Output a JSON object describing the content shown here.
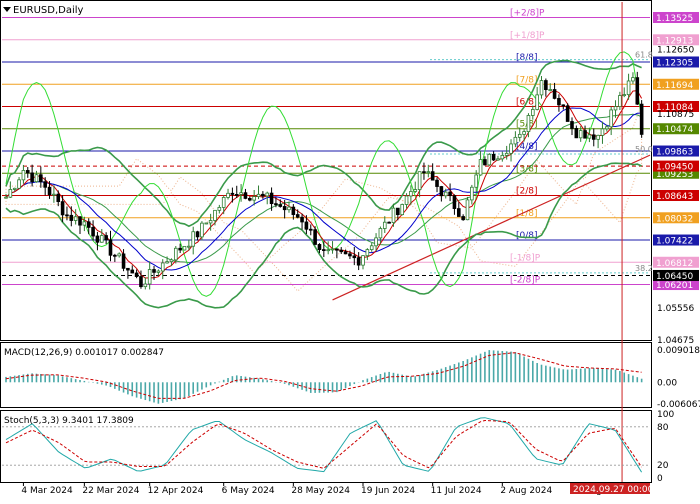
{
  "chart_title": "EURUSD,Daily",
  "symbol_icon": "triangle-down-icon",
  "colors": {
    "up_candle": "#2e7d32",
    "down_candle": "#000000",
    "ma_fast": "#cc0000",
    "ma_slow": "#0000cc",
    "bollinger": "#3a9a4a",
    "rsi_line": "#33dd33",
    "ichimoku_cloud": "#e8a070",
    "trendline": "#cc2222",
    "vline": "#cc2222",
    "murrey_plus2": "#cc44cc",
    "murrey_plus1": "#f0a0d0",
    "murrey_8_8": "#1a1aaa",
    "murrey_7_8": "#f0a020",
    "murrey_6_8": "#cc0000",
    "murrey_5_8": "#558800",
    "murrey_4_8": "#1a1aaa",
    "murrey_3_8": "#558800",
    "murrey_2_8": "#cc0000",
    "murrey_1_8": "#f0a020",
    "murrey_0_8": "#1a1aaa",
    "murrey_minus1": "#f0a0d0",
    "murrey_minus2": "#cc44cc",
    "fib_line": "#66cccc",
    "macd_bar": "#4aa8a8",
    "macd_signal": "#cc0000",
    "stoch_main": "#20a8a8",
    "stoch_signal": "#cc0000"
  },
  "murrey_levels": [
    {
      "label": "[+2/8]P",
      "price": 1.13525,
      "color_key": "murrey_plus2",
      "tag": "1.13525"
    },
    {
      "label": "[+1/8]P",
      "price": 1.12913,
      "color_key": "murrey_plus1",
      "tag": "1.12913"
    },
    {
      "label": "[8/8]",
      "price": 1.12305,
      "color_key": "murrey_8_8",
      "tag": "1.12305"
    },
    {
      "label": "[7/8]",
      "price": 1.11694,
      "color_key": "murrey_7_8",
      "tag": "1.11694"
    },
    {
      "label": "[6/8]",
      "price": 1.11084,
      "color_key": "murrey_6_8",
      "tag": "1.11084"
    },
    {
      "label": "[5/8]",
      "price": 1.10474,
      "color_key": "murrey_5_8",
      "tag": "1.10474"
    },
    {
      "label": "[4/8]",
      "price": 1.09863,
      "color_key": "murrey_4_8",
      "tag": "1.09863"
    },
    {
      "label": "[3/8]",
      "price": 1.09253,
      "color_key": "murrey_3_8",
      "tag": "1.09253"
    },
    {
      "label": "[2/8]",
      "price": 1.08643,
      "color_key": "murrey_2_8",
      "tag": "1.08643"
    },
    {
      "label": "[1/8]",
      "price": 1.08032,
      "color_key": "murrey_1_8",
      "tag": "1.08032"
    },
    {
      "label": "[0/8]",
      "price": 1.07422,
      "color_key": "murrey_0_8",
      "tag": "1.07422"
    },
    {
      "label": "[-1/8]P",
      "price": 1.06812,
      "color_key": "murrey_minus1",
      "tag": "1.06812"
    },
    {
      "label": "[-2/8]P",
      "price": 1.06201,
      "color_key": "murrey_minus2",
      "tag": "1.06201"
    }
  ],
  "extra_price_tags": [
    {
      "price": 1.0945,
      "tag": "1.09450",
      "color": "#cc0000",
      "dashed": true
    },
    {
      "price": 1.0645,
      "tag": "1.06450",
      "color": "#000000",
      "dashed": true
    }
  ],
  "fib_levels": [
    {
      "label": "61.8",
      "price": 1.1237
    },
    {
      "label": "50.0",
      "price": 1.0978
    },
    {
      "label": "38.2",
      "price": 1.0652
    }
  ],
  "price_axis_labels": [
    {
      "text": "1.12650",
      "price": 1.1265
    },
    {
      "text": "1.10875",
      "price": 1.10875
    },
    {
      "text": "1.05556",
      "price": 1.05556
    },
    {
      "text": "1.04675",
      "price": 1.04675
    }
  ],
  "macd": {
    "title": "MACD(12,26,9) 0.001017 0.002847",
    "ticks": [
      {
        "text": "0.009018",
        "value": 0.009018
      },
      {
        "text": "0.00",
        "value": 0
      },
      {
        "text": "-0.006067",
        "value": -0.006067
      }
    ]
  },
  "stoch": {
    "title": "Stoch(5,3,3) 9.3401 17.3809",
    "ticks": [
      {
        "text": "100",
        "value": 100
      },
      {
        "text": "80",
        "value": 80
      },
      {
        "text": "20",
        "value": 20
      },
      {
        "text": "0",
        "value": 0
      }
    ]
  },
  "date_labels": [
    {
      "text": "4 Mar 2024",
      "bar": 4
    },
    {
      "text": "22 Mar 2024",
      "bar": 18
    },
    {
      "text": "12 Apr 2024",
      "bar": 33
    },
    {
      "text": "6 May 2024",
      "bar": 50
    },
    {
      "text": "28 May 2024",
      "bar": 66
    },
    {
      "text": "19 Jun 2024",
      "bar": 82
    },
    {
      "text": "11 Jul 2024",
      "bar": 98
    },
    {
      "text": "2 Aug 2024",
      "bar": 114
    },
    {
      "text": "26 Aug 2024",
      "bar": 130
    }
  ],
  "current_date_tag": "2024.09.27 00:00",
  "chart_data": [
    {
      "type": "candlestick",
      "title": "EURUSD,Daily",
      "x_range": [
        "4 Mar 2024",
        "27 Sep 2024"
      ],
      "ylim": [
        1.0468,
        1.1395
      ],
      "close_path": [
        {
          "date": "4 Mar 2024",
          "close": 1.086
        },
        {
          "date": "8 Mar 2024",
          "close": 1.0935
        },
        {
          "date": "15 Mar 2024",
          "close": 1.089
        },
        {
          "date": "22 Mar 2024",
          "close": 1.081
        },
        {
          "date": "28 Mar 2024",
          "close": 1.079
        },
        {
          "date": "12 Apr 2024",
          "close": 1.065
        },
        {
          "date": "16 Apr 2024",
          "close": 1.0622
        },
        {
          "date": "26 Apr 2024",
          "close": 1.07
        },
        {
          "date": "6 May 2024",
          "close": 1.076
        },
        {
          "date": "16 May 2024",
          "close": 1.088
        },
        {
          "date": "28 May 2024",
          "close": 1.0855
        },
        {
          "date": "7 Jun 2024",
          "close": 1.08
        },
        {
          "date": "14 Jun 2024",
          "close": 1.0705
        },
        {
          "date": "26 Jun 2024",
          "close": 1.069
        },
        {
          "date": "11 Jul 2024",
          "close": 1.086
        },
        {
          "date": "17 Jul 2024",
          "close": 1.093
        },
        {
          "date": "30 Jul 2024",
          "close": 1.081
        },
        {
          "date": "5 Aug 2024",
          "close": 1.095
        },
        {
          "date": "16 Aug 2024",
          "close": 1.102
        },
        {
          "date": "23 Aug 2024",
          "close": 1.118
        },
        {
          "date": "26 Aug 2024",
          "close": 1.116
        },
        {
          "date": "3 Sep 2024",
          "close": 1.104
        },
        {
          "date": "10 Sep 2024",
          "close": 1.103
        },
        {
          "date": "17 Sep 2024",
          "close": 1.113
        },
        {
          "date": "25 Sep 2024",
          "close": 1.118
        },
        {
          "date": "27 Sep 2024",
          "close": 1.104
        }
      ]
    },
    {
      "type": "bar",
      "title": "MACD(12,26,9) 0.001017 0.002847",
      "ylim": [
        -0.006067,
        0.009018
      ],
      "series": [
        {
          "name": "MACD",
          "values": [
            0.0015,
            0.0025,
            0.002,
            0.0005,
            -0.001,
            -0.004,
            -0.006,
            -0.0045,
            -0.001,
            0.002,
            0.001,
            -0.0005,
            -0.003,
            -0.0028,
            0.0005,
            0.003,
            0.0015,
            0.0035,
            0.006,
            0.009,
            0.0085,
            0.005,
            0.0035,
            0.004,
            0.0035,
            0.001
          ]
        },
        {
          "name": "Signal",
          "values": [
            0.001,
            0.002,
            0.0021,
            0.0012,
            0.0,
            -0.0025,
            -0.0045,
            -0.0045,
            -0.0025,
            0.0005,
            0.0012,
            0.0002,
            -0.0018,
            -0.0025,
            -0.001,
            0.0015,
            0.0017,
            0.0025,
            0.0045,
            0.0075,
            0.0083,
            0.0065,
            0.0045,
            0.004,
            0.0037,
            0.0028
          ]
        }
      ]
    },
    {
      "type": "line",
      "title": "Stoch(5,3,3) 9.3401 17.3809",
      "ylim": [
        0,
        100
      ],
      "levels": [
        20,
        80
      ],
      "series": [
        {
          "name": "Main",
          "values": [
            60,
            85,
            40,
            15,
            30,
            10,
            20,
            75,
            90,
            60,
            40,
            15,
            10,
            70,
            90,
            20,
            10,
            80,
            95,
            85,
            30,
            20,
            85,
            75,
            9
          ]
        },
        {
          "name": "Signal",
          "values": [
            55,
            75,
            55,
            25,
            25,
            18,
            18,
            55,
            85,
            70,
            45,
            25,
            15,
            50,
            85,
            35,
            15,
            65,
            90,
            88,
            45,
            25,
            70,
            78,
            17
          ]
        }
      ]
    }
  ]
}
